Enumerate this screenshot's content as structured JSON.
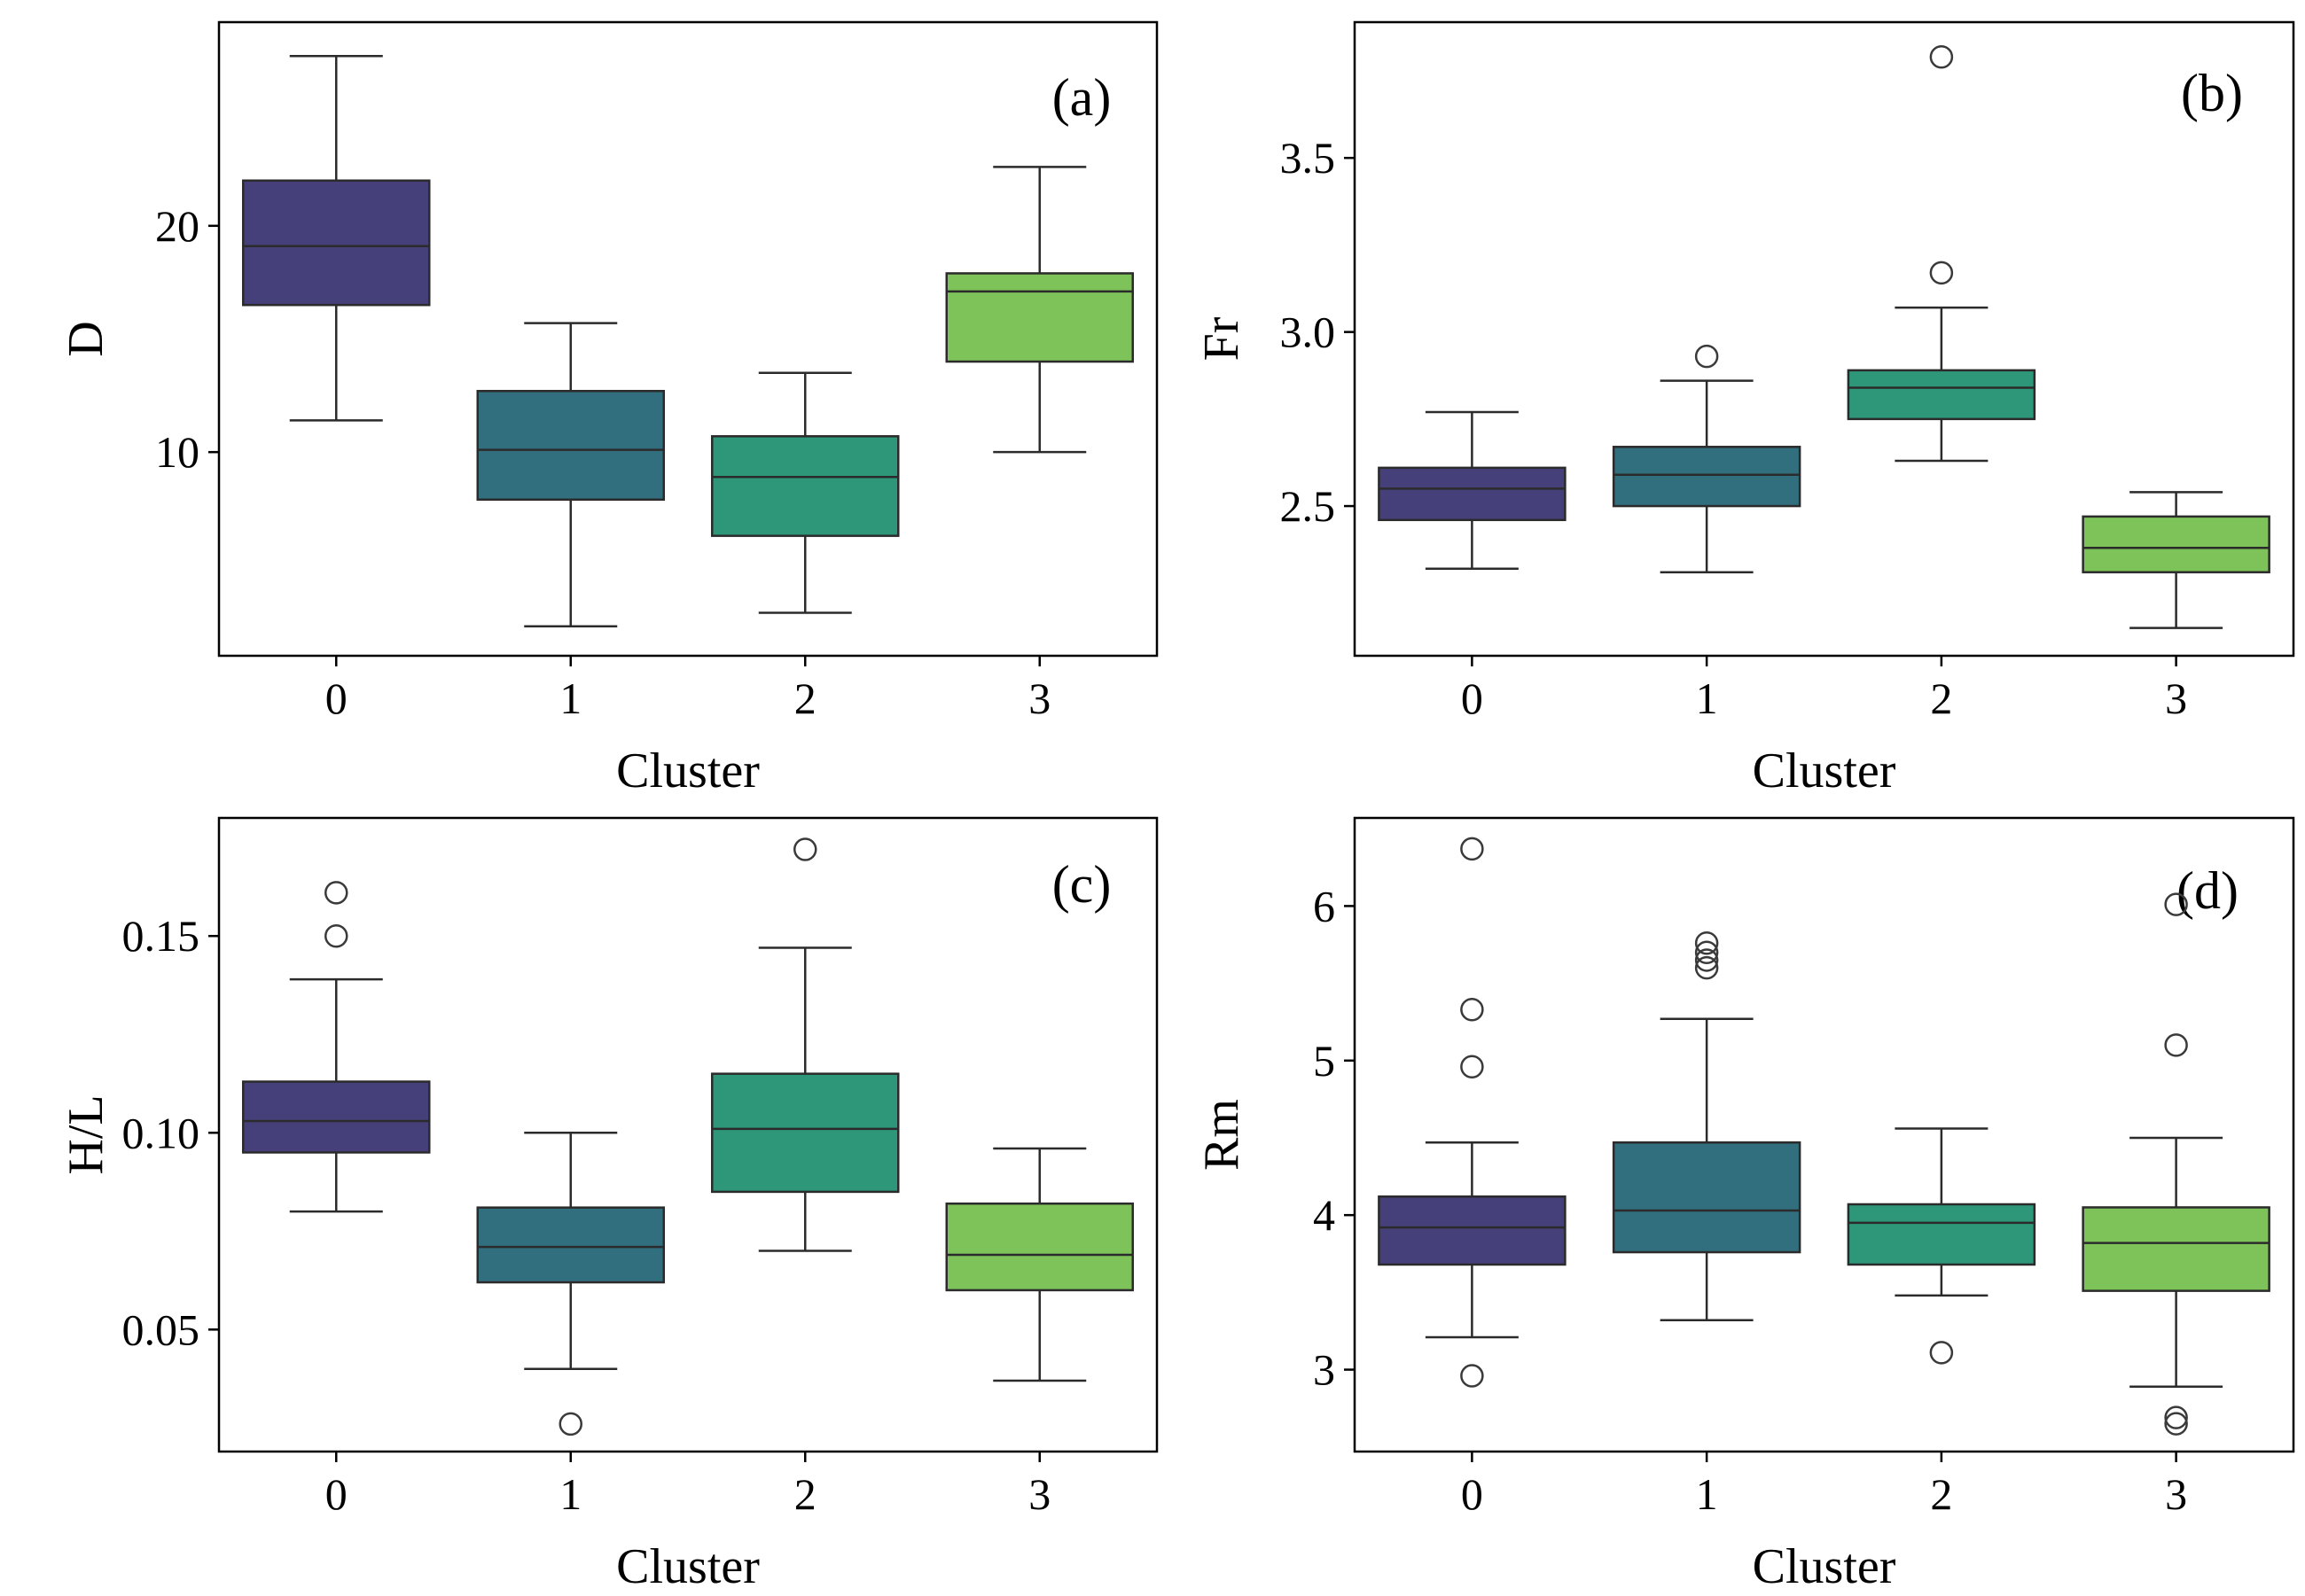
{
  "chart_data": [
    {
      "type": "boxplot",
      "panel_label": "(a)",
      "xlabel": "Cluster",
      "ylabel": "D",
      "categories": [
        "0",
        "1",
        "2",
        "3"
      ],
      "ylim": [
        1.0,
        29.0
      ],
      "yticks": [
        10,
        20
      ],
      "ytick_labels": [
        "10",
        "20"
      ],
      "boxes": [
        {
          "category": "0",
          "whisker_low": 11.4,
          "q1": 16.5,
          "median": 19.1,
          "q3": 22.0,
          "whisker_high": 27.5,
          "outliers": []
        },
        {
          "category": "1",
          "whisker_low": 2.3,
          "q1": 7.9,
          "median": 10.1,
          "q3": 12.7,
          "whisker_high": 15.7,
          "outliers": []
        },
        {
          "category": "2",
          "whisker_low": 2.9,
          "q1": 6.3,
          "median": 8.9,
          "q3": 10.7,
          "whisker_high": 13.5,
          "outliers": []
        },
        {
          "category": "3",
          "whisker_low": 10.0,
          "q1": 14.0,
          "median": 17.1,
          "q3": 17.9,
          "whisker_high": 22.6,
          "outliers": []
        }
      ]
    },
    {
      "type": "boxplot",
      "panel_label": "(b)",
      "xlabel": "Cluster",
      "ylabel": "Fr",
      "categories": [
        "0",
        "1",
        "2",
        "3"
      ],
      "ylim": [
        2.07,
        3.89
      ],
      "yticks": [
        2.5,
        3.0,
        3.5
      ],
      "ytick_labels": [
        "2.5",
        "3.0",
        "3.5"
      ],
      "boxes": [
        {
          "category": "0",
          "whisker_low": 2.32,
          "q1": 2.46,
          "median": 2.55,
          "q3": 2.61,
          "whisker_high": 2.77,
          "outliers": []
        },
        {
          "category": "1",
          "whisker_low": 2.31,
          "q1": 2.5,
          "median": 2.59,
          "q3": 2.67,
          "whisker_high": 2.86,
          "outliers": [
            2.93
          ]
        },
        {
          "category": "2",
          "whisker_low": 2.63,
          "q1": 2.75,
          "median": 2.84,
          "q3": 2.89,
          "whisker_high": 3.07,
          "outliers": [
            3.17,
            3.79
          ]
        },
        {
          "category": "3",
          "whisker_low": 2.15,
          "q1": 2.31,
          "median": 2.38,
          "q3": 2.47,
          "whisker_high": 2.54,
          "outliers": []
        }
      ]
    },
    {
      "type": "boxplot",
      "panel_label": "(c)",
      "xlabel": "Cluster",
      "ylabel": "H/L",
      "categories": [
        "0",
        "1",
        "2",
        "3"
      ],
      "ylim": [
        0.019,
        0.18
      ],
      "yticks": [
        0.05,
        0.1,
        0.15
      ],
      "ytick_labels": [
        "0.05",
        "0.10",
        "0.15"
      ],
      "boxes": [
        {
          "category": "0",
          "whisker_low": 0.08,
          "q1": 0.095,
          "median": 0.103,
          "q3": 0.113,
          "whisker_high": 0.139,
          "outliers": [
            0.15,
            0.161
          ]
        },
        {
          "category": "1",
          "whisker_low": 0.04,
          "q1": 0.062,
          "median": 0.071,
          "q3": 0.081,
          "whisker_high": 0.1,
          "outliers": [
            0.026
          ]
        },
        {
          "category": "2",
          "whisker_low": 0.07,
          "q1": 0.085,
          "median": 0.101,
          "q3": 0.115,
          "whisker_high": 0.147,
          "outliers": [
            0.172
          ]
        },
        {
          "category": "3",
          "whisker_low": 0.037,
          "q1": 0.06,
          "median": 0.069,
          "q3": 0.082,
          "whisker_high": 0.096,
          "outliers": []
        }
      ]
    },
    {
      "type": "boxplot",
      "panel_label": "(d)",
      "xlabel": "Cluster",
      "ylabel": "Rm",
      "categories": [
        "0",
        "1",
        "2",
        "3"
      ],
      "ylim": [
        2.47,
        6.57
      ],
      "yticks": [
        3,
        4,
        5,
        6
      ],
      "ytick_labels": [
        "3",
        "4",
        "5",
        "6"
      ],
      "boxes": [
        {
          "category": "0",
          "whisker_low": 3.21,
          "q1": 3.68,
          "median": 3.92,
          "q3": 4.12,
          "whisker_high": 4.47,
          "outliers": [
            2.96,
            4.96,
            5.33,
            6.37
          ]
        },
        {
          "category": "1",
          "whisker_low": 3.32,
          "q1": 3.76,
          "median": 4.03,
          "q3": 4.47,
          "whisker_high": 5.27,
          "outliers": [
            5.6,
            5.65,
            5.7,
            5.76
          ]
        },
        {
          "category": "2",
          "whisker_low": 3.48,
          "q1": 3.68,
          "median": 3.95,
          "q3": 4.07,
          "whisker_high": 4.56,
          "outliers": [
            3.11
          ]
        },
        {
          "category": "3",
          "whisker_low": 2.89,
          "q1": 3.51,
          "median": 3.82,
          "q3": 4.05,
          "whisker_high": 4.5,
          "outliers": [
            2.65,
            2.69,
            5.1,
            6.01
          ]
        }
      ]
    }
  ],
  "colors": {
    "cluster_fills": [
      "#46407a",
      "#316f7f",
      "#2e977a",
      "#7ec35a"
    ],
    "line": "#2b2b2b",
    "outlier_edge": "#3a3a3a"
  }
}
